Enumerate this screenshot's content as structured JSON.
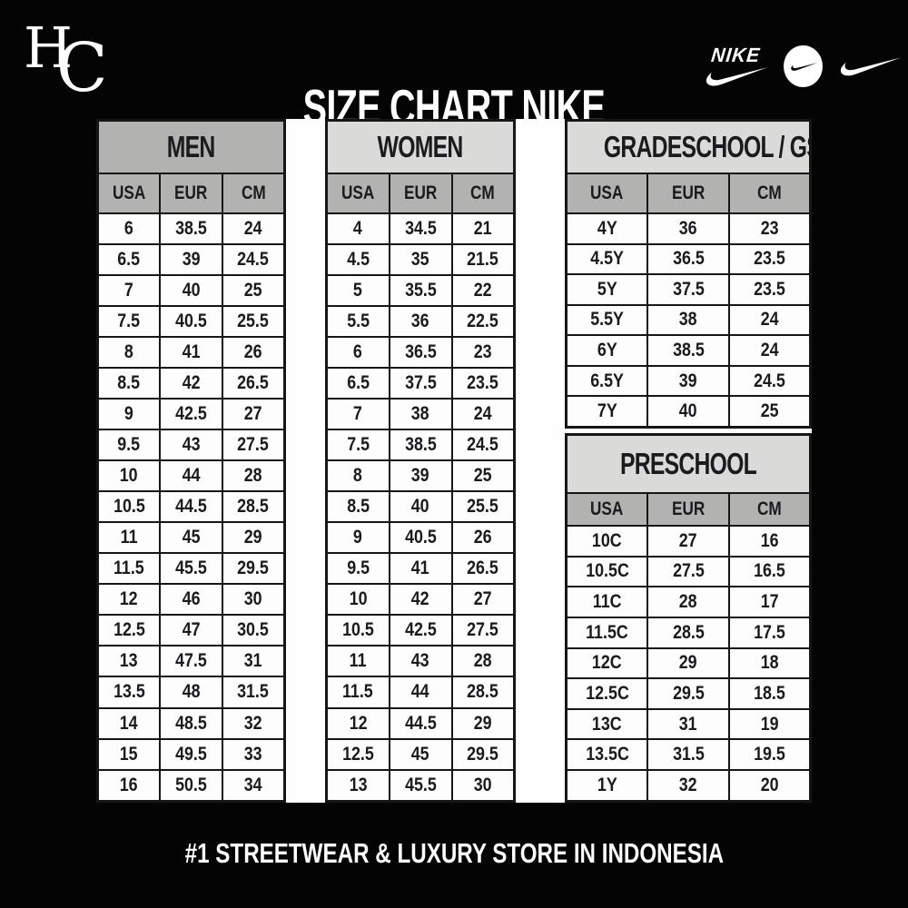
{
  "header": {
    "monogram": {
      "letter_h": "H",
      "letter_c": "C"
    },
    "title": "SIZE CHART NIKE",
    "nike_wordmark": "NIKE"
  },
  "footer": {
    "tagline": "#1 STREETWEAR & LUXURY STORE IN INDONESIA"
  },
  "colors": {
    "background": "#040404",
    "panel_white": "#fefefe",
    "band_dark": "#b2b2b0",
    "band_light": "#dadad8",
    "col_header": "#b2b2b0",
    "border": "#161616",
    "cell_text": "#1b1b1f"
  },
  "chart_data": [
    {
      "type": "table",
      "title": "MEN",
      "band": "dark",
      "columns": [
        "USA",
        "EUR",
        "CM"
      ],
      "rows": [
        [
          "6",
          "38.5",
          "24"
        ],
        [
          "6.5",
          "39",
          "24.5"
        ],
        [
          "7",
          "40",
          "25"
        ],
        [
          "7.5",
          "40.5",
          "25.5"
        ],
        [
          "8",
          "41",
          "26"
        ],
        [
          "8.5",
          "42",
          "26.5"
        ],
        [
          "9",
          "42.5",
          "27"
        ],
        [
          "9.5",
          "43",
          "27.5"
        ],
        [
          "10",
          "44",
          "28"
        ],
        [
          "10.5",
          "44.5",
          "28.5"
        ],
        [
          "11",
          "45",
          "29"
        ],
        [
          "11.5",
          "45.5",
          "29.5"
        ],
        [
          "12",
          "46",
          "30"
        ],
        [
          "12.5",
          "47",
          "30.5"
        ],
        [
          "13",
          "47.5",
          "31"
        ],
        [
          "13.5",
          "48",
          "31.5"
        ],
        [
          "14",
          "48.5",
          "32"
        ],
        [
          "15",
          "49.5",
          "33"
        ],
        [
          "16",
          "50.5",
          "34"
        ]
      ]
    },
    {
      "type": "table",
      "title": "WOMEN",
      "band": "light",
      "columns": [
        "USA",
        "EUR",
        "CM"
      ],
      "rows": [
        [
          "4",
          "34.5",
          "21"
        ],
        [
          "4.5",
          "35",
          "21.5"
        ],
        [
          "5",
          "35.5",
          "22"
        ],
        [
          "5.5",
          "36",
          "22.5"
        ],
        [
          "6",
          "36.5",
          "23"
        ],
        [
          "6.5",
          "37.5",
          "23.5"
        ],
        [
          "7",
          "38",
          "24"
        ],
        [
          "7.5",
          "38.5",
          "24.5"
        ],
        [
          "8",
          "39",
          "25"
        ],
        [
          "8.5",
          "40",
          "25.5"
        ],
        [
          "9",
          "40.5",
          "26"
        ],
        [
          "9.5",
          "41",
          "26.5"
        ],
        [
          "10",
          "42",
          "27"
        ],
        [
          "10.5",
          "42.5",
          "27.5"
        ],
        [
          "11",
          "43",
          "28"
        ],
        [
          "11.5",
          "44",
          "28.5"
        ],
        [
          "12",
          "44.5",
          "29"
        ],
        [
          "12.5",
          "45",
          "29.5"
        ],
        [
          "13",
          "45.5",
          "30"
        ]
      ]
    },
    {
      "type": "table",
      "title": "GRADESCHOOL / GS",
      "band": "light",
      "columns": [
        "USA",
        "EUR",
        "CM"
      ],
      "rows": [
        [
          "4Y",
          "36",
          "23"
        ],
        [
          "4.5Y",
          "36.5",
          "23.5"
        ],
        [
          "5Y",
          "37.5",
          "23.5"
        ],
        [
          "5.5Y",
          "38",
          "24"
        ],
        [
          "6Y",
          "38.5",
          "24"
        ],
        [
          "6.5Y",
          "39",
          "24.5"
        ],
        [
          "7Y",
          "40",
          "25"
        ]
      ]
    },
    {
      "type": "table",
      "title": "PRESCHOOL",
      "band": "light",
      "columns": [
        "USA",
        "EUR",
        "CM"
      ],
      "rows": [
        [
          "10C",
          "27",
          "16"
        ],
        [
          "10.5C",
          "27.5",
          "16.5"
        ],
        [
          "11C",
          "28",
          "17"
        ],
        [
          "11.5C",
          "28.5",
          "17.5"
        ],
        [
          "12C",
          "29",
          "18"
        ],
        [
          "12.5C",
          "29.5",
          "18.5"
        ],
        [
          "13C",
          "31",
          "19"
        ],
        [
          "13.5C",
          "31.5",
          "19.5"
        ],
        [
          "1Y",
          "32",
          "20"
        ]
      ]
    }
  ]
}
